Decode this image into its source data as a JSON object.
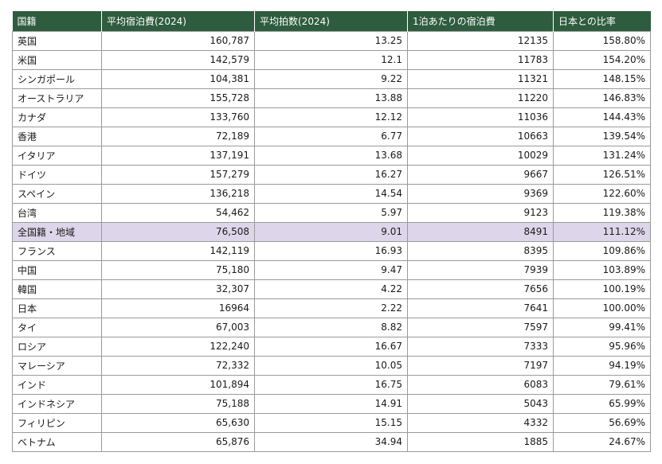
{
  "headers": [
    "国籍",
    "平均宿泊費(2024)",
    "平均拍数(2024)",
    "1泊あたりの宿泊費",
    "日本との比率"
  ],
  "highlight_row": "全国籍・地域",
  "colors": {
    "header_bg": "#2e5c3e",
    "header_text": "#ffffff",
    "highlight_bg": "#ddd6ea",
    "border": "#9a9a9a"
  },
  "rows": [
    [
      "英国",
      "160,787",
      "13.25",
      "12135",
      "158.80%"
    ],
    [
      "米国",
      "142,579",
      "12.1",
      "11783",
      "154.20%"
    ],
    [
      "シンガポール",
      "104,381",
      "9.22",
      "11321",
      "148.15%"
    ],
    [
      "オーストラリア",
      "155,728",
      "13.88",
      "11220",
      "146.83%"
    ],
    [
      "カナダ",
      "133,760",
      "12.12",
      "11036",
      "144.43%"
    ],
    [
      "香港",
      "72,189",
      "6.77",
      "10663",
      "139.54%"
    ],
    [
      "イタリア",
      "137,191",
      "13.68",
      "10029",
      "131.24%"
    ],
    [
      "ドイツ",
      "157,279",
      "16.27",
      "9667",
      "126.51%"
    ],
    [
      "スペイン",
      "136,218",
      "14.54",
      "9369",
      "122.60%"
    ],
    [
      "台湾",
      "54,462",
      "5.97",
      "9123",
      "119.38%"
    ],
    [
      "全国籍・地域",
      "76,508",
      "9.01",
      "8491",
      "111.12%"
    ],
    [
      "フランス",
      "142,119",
      "16.93",
      "8395",
      "109.86%"
    ],
    [
      "中国",
      "75,180",
      "9.47",
      "7939",
      "103.89%"
    ],
    [
      "韓国",
      "32,307",
      "4.22",
      "7656",
      "100.19%"
    ],
    [
      "日本",
      "16964",
      "2.22",
      "7641",
      "100.00%"
    ],
    [
      "タイ",
      "67,003",
      "8.82",
      "7597",
      "99.41%"
    ],
    [
      "ロシア",
      "122,240",
      "16.67",
      "7333",
      "95.96%"
    ],
    [
      "マレーシア",
      "72,332",
      "10.05",
      "7197",
      "94.19%"
    ],
    [
      "インド",
      "101,894",
      "16.75",
      "6083",
      "79.61%"
    ],
    [
      "インドネシア",
      "75,188",
      "14.91",
      "5043",
      "65.99%"
    ],
    [
      "フィリピン",
      "65,630",
      "15.15",
      "4332",
      "56.69%"
    ],
    [
      "ベトナム",
      "65,876",
      "34.94",
      "1885",
      "24.67%"
    ]
  ]
}
